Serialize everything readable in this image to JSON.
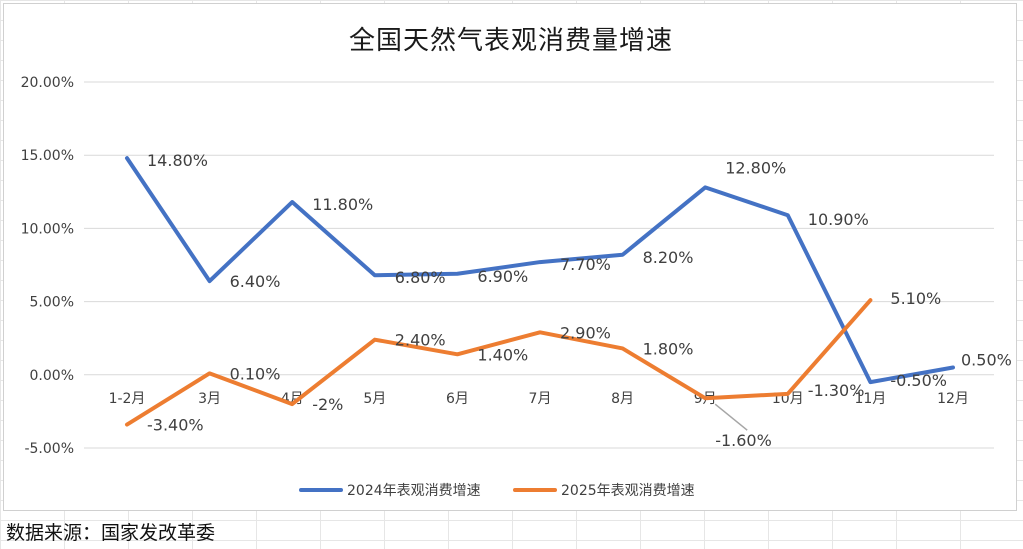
{
  "colors": {
    "series_2024": "#4472C4",
    "series_2025": "#ED7D31",
    "grid": "#d9d9d9",
    "text": "#404040",
    "leader": "#a6a6a6"
  },
  "source": "数据来源：国家发改革委",
  "chart_data": {
    "type": "line",
    "title": "全国天然气表观消费量增速",
    "categories": [
      "1-2月",
      "3月",
      "4月",
      "5月",
      "6月",
      "7月",
      "8月",
      "9月",
      "10月",
      "11月",
      "12月"
    ],
    "ylim": [
      -5,
      20
    ],
    "yticks": [
      "-5.00%",
      "0.00%",
      "5.00%",
      "10.00%",
      "15.00%",
      "20.00%"
    ],
    "ytick_values": [
      -5,
      0,
      5,
      10,
      15,
      20
    ],
    "grid": true,
    "legend": "bottom",
    "series": [
      {
        "name": "2024年表观消费增速",
        "values": [
          14.8,
          6.4,
          11.8,
          6.8,
          6.9,
          7.7,
          8.2,
          12.8,
          10.9,
          -0.5,
          0.5
        ],
        "labels": [
          "14.80%",
          "6.40%",
          "11.80%",
          "6.80%",
          "6.90%",
          "7.70%",
          "8.20%",
          "12.80%",
          "10.90%",
          "-0.50%",
          "0.50%"
        ]
      },
      {
        "name": "2025年表观消费增速",
        "values": [
          -3.4,
          0.1,
          -2,
          2.4,
          1.4,
          2.9,
          1.8,
          -1.6,
          -1.3,
          5.1,
          null
        ],
        "labels": [
          "-3.40%",
          "0.10%",
          "-2%",
          "2.40%",
          "1.40%",
          "2.90%",
          "1.80%",
          "-1.60%",
          "-1.30%",
          "5.10%",
          null
        ]
      }
    ]
  }
}
